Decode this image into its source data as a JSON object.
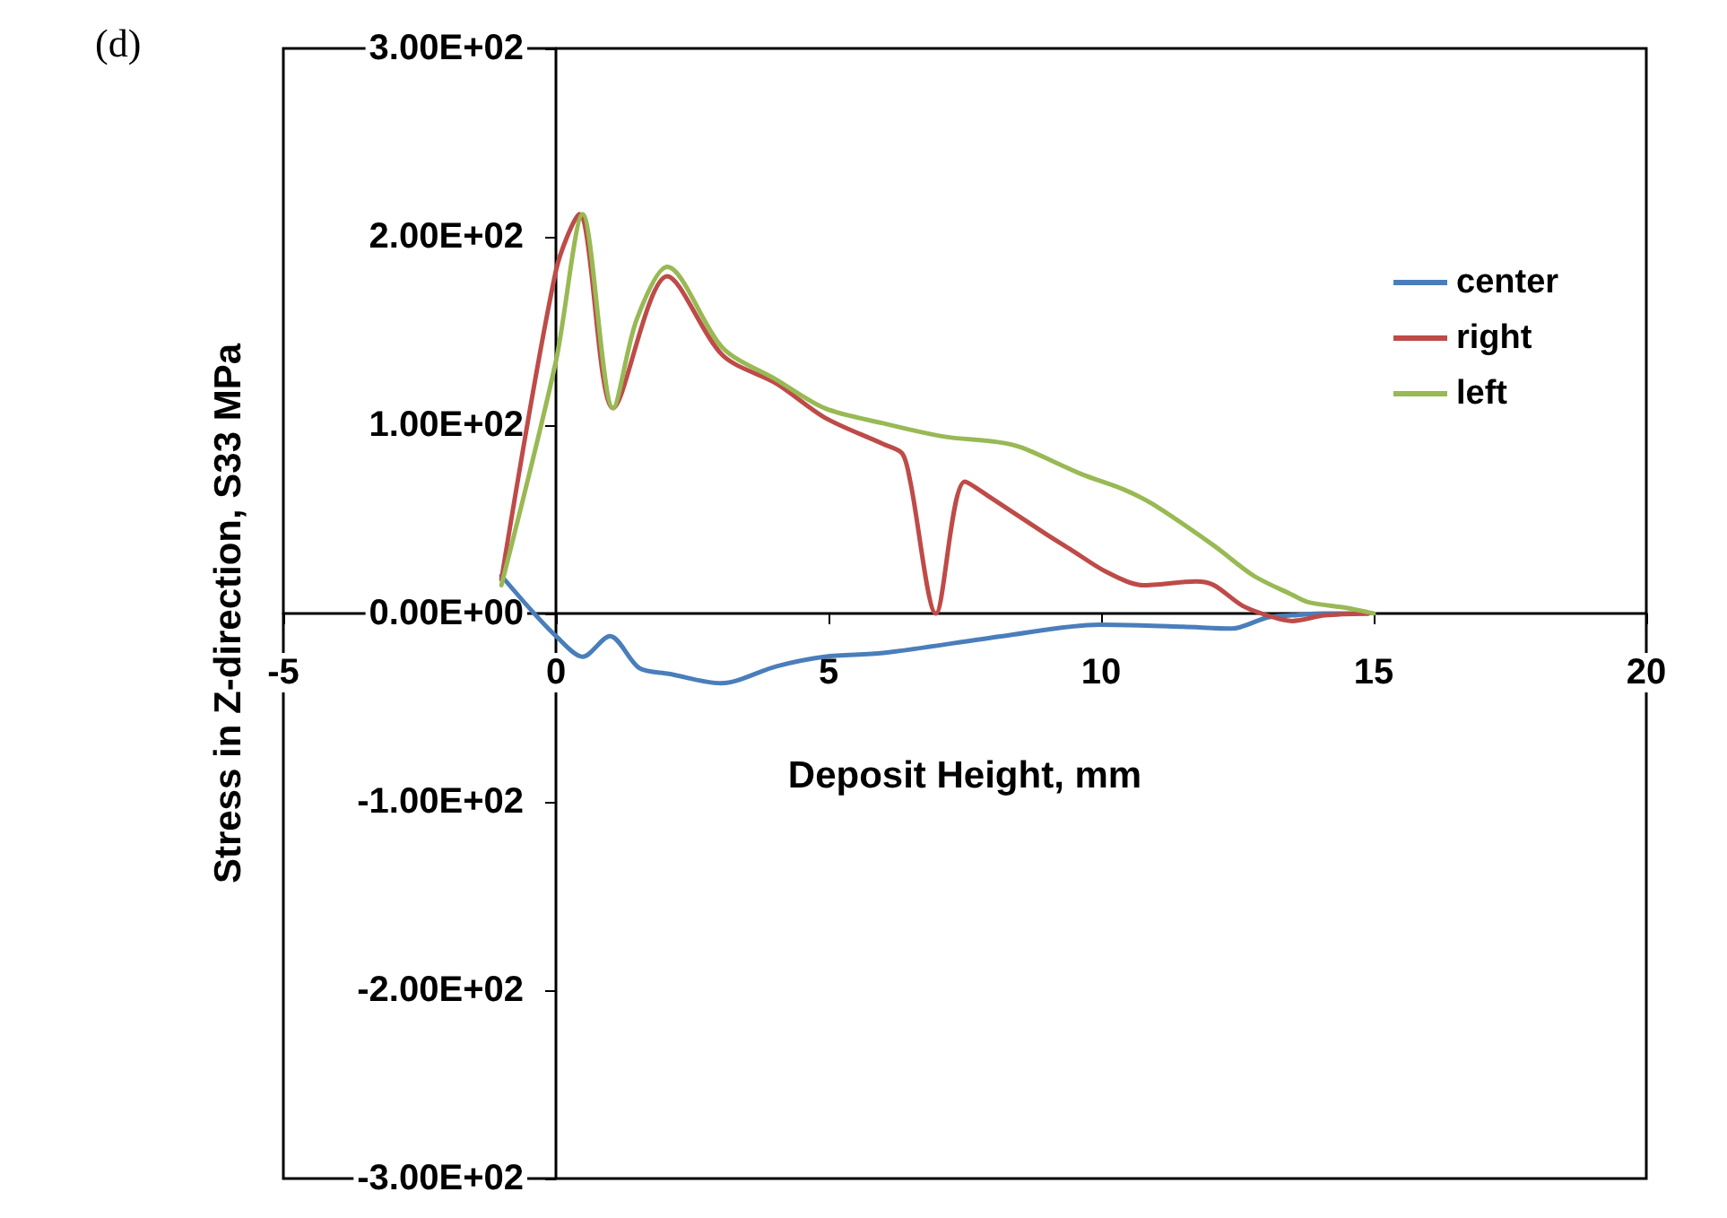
{
  "chart_data": {
    "type": "line",
    "title": "(d)",
    "xlabel": "Deposit Height, mm",
    "ylabel": "Stress in Z-direction, S33 MPa",
    "xlim": [
      -5,
      20
    ],
    "xticks": [
      -5,
      0,
      5,
      10,
      15,
      20
    ],
    "ylim": [
      -300,
      300
    ],
    "yticks": [
      {
        "value": -300,
        "label": "-3.00E+02"
      },
      {
        "value": -200,
        "label": "-2.00E+02"
      },
      {
        "value": -100,
        "label": "-1.00E+02"
      },
      {
        "value": 0,
        "label": "0.00E+00"
      },
      {
        "value": 100,
        "label": "1.00E+02"
      },
      {
        "value": 200,
        "label": "2.00E+02"
      },
      {
        "value": 300,
        "label": "3.00E+02"
      }
    ],
    "grid": false,
    "legend": "top right",
    "marker": "none",
    "line_style": "solid",
    "series": [
      {
        "name": "center",
        "color": "#4a7ebb",
        "x": [
          -1,
          -0.43,
          0,
          0.49,
          0.99,
          1.53,
          2.07,
          3.03,
          4.05,
          4.93,
          6.0,
          8.2,
          9.97,
          11.5,
          12.4,
          13.06,
          13.5,
          14.1,
          14.9
        ],
        "values": [
          20,
          1,
          -12,
          -23,
          -12,
          -29,
          -32,
          -37,
          -28,
          -23,
          -21,
          -12,
          -6,
          -7,
          -8,
          -2,
          -1,
          0,
          0
        ]
      },
      {
        "name": "right",
        "color": "#be4b48",
        "x": [
          -1,
          0,
          0.43,
          1.05,
          2.04,
          3.06,
          4.05,
          4.93,
          6.0,
          6.35,
          6.5,
          6.97,
          7.5,
          8.0,
          9.0,
          9.44,
          10.1,
          10.76,
          11.74,
          12.07,
          12.6,
          13.16,
          13.5,
          14.1,
          14.9
        ],
        "values": [
          18,
          182,
          212,
          109,
          179,
          137,
          122,
          104,
          90,
          85,
          70,
          0,
          70,
          61,
          42,
          34,
          22,
          15,
          17,
          15,
          4,
          -2,
          -4,
          -1,
          0
        ]
      },
      {
        "name": "left",
        "color": "#98b954",
        "x": [
          -1,
          0,
          0.49,
          1.05,
          1.48,
          2.04,
          3.06,
          4.05,
          4.93,
          6.0,
          7.1,
          8.1,
          8.55,
          9.64,
          10.4,
          10.95,
          12.07,
          12.8,
          13.5,
          13.8,
          14.5,
          15.0
        ],
        "values": [
          15,
          134,
          212,
          109,
          156,
          184,
          141,
          124,
          109,
          101,
          94,
          91,
          88,
          74,
          66,
          58,
          36,
          20,
          10,
          6,
          3,
          0
        ]
      }
    ]
  }
}
